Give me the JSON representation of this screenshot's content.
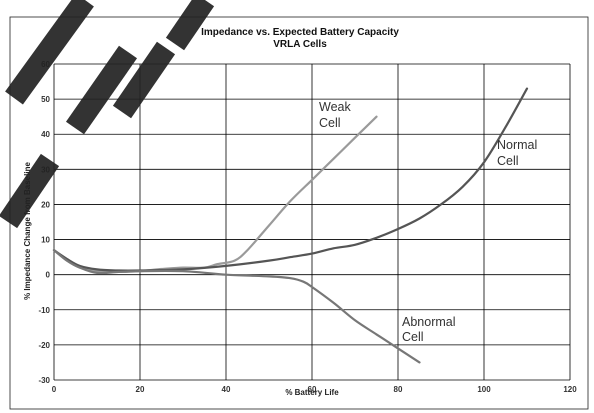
{
  "chart_data": {
    "type": "line",
    "title": "Impedance vs. Expected Battery Capacity",
    "subtitle": "VRLA Cells",
    "xlabel": "% Battery Life",
    "ylabel": "% Impedance Change from Baseline",
    "xlim": [
      0,
      120
    ],
    "ylim": [
      -30,
      60
    ],
    "x_ticks": [
      "0",
      "20",
      "40",
      "60",
      "80",
      "100",
      "120"
    ],
    "y_ticks": [
      "60",
      "50",
      "40",
      "30",
      "20",
      "10",
      "0",
      "-10",
      "-20",
      "-30"
    ],
    "grid": true,
    "legend": "none",
    "series": [
      {
        "name": "Weak Cell",
        "color": "#9a9a9a",
        "x": [
          0,
          3,
          6,
          10,
          15,
          20,
          25,
          30,
          35,
          38,
          42,
          45,
          50,
          55,
          60,
          65,
          70,
          75
        ],
        "y": [
          7,
          4,
          2,
          1,
          0.8,
          1,
          1.6,
          2,
          2,
          3,
          4,
          7,
          14,
          21,
          27,
          33,
          39,
          45
        ]
      },
      {
        "name": "Normal Cell",
        "color": "#555555",
        "x": [
          0,
          3,
          6,
          10,
          15,
          20,
          30,
          40,
          50,
          55,
          60,
          65,
          70,
          75,
          80,
          85,
          90,
          95,
          100,
          105,
          110
        ],
        "y": [
          7,
          4.5,
          2.5,
          1.5,
          1.2,
          1.2,
          1.5,
          2.5,
          4,
          5,
          6,
          7.5,
          8.5,
          10.5,
          13,
          16,
          20,
          25,
          32,
          42,
          53
        ]
      },
      {
        "name": "Abnormal Cell",
        "color": "#777777",
        "x": [
          0,
          3,
          6,
          10,
          15,
          20,
          30,
          40,
          50,
          55,
          58,
          60,
          65,
          70,
          75,
          80,
          85
        ],
        "y": [
          7,
          4,
          2,
          0.5,
          0.8,
          1,
          1,
          0,
          -0.5,
          -1,
          -2,
          -3.5,
          -8,
          -13,
          -17,
          -21,
          -25
        ]
      }
    ],
    "annotations": [
      {
        "text": [
          "Weak",
          "Cell"
        ]
      },
      {
        "text": [
          "Normal",
          "Cell"
        ]
      },
      {
        "text": [
          "Abnormal",
          "Cell"
        ]
      }
    ]
  },
  "colors": {
    "watermark": "#222222",
    "grid": "#000000",
    "plot_background": "#ffffff"
  }
}
